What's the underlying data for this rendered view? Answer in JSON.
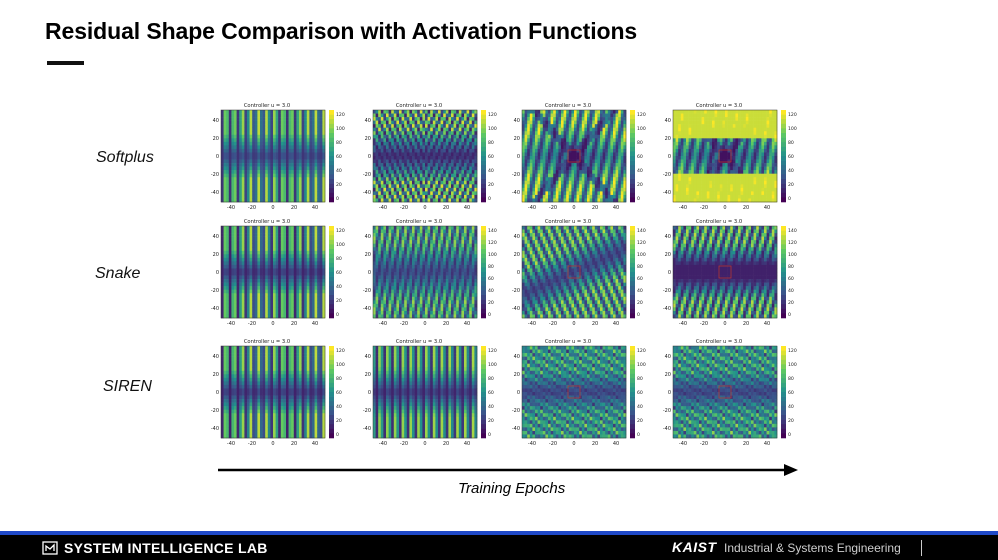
{
  "slide": {
    "title": "Residual Shape Comparison with Activation Functions",
    "rows": [
      "Softplus",
      "Snake",
      "SIREN"
    ],
    "xaxis_label": "Training Epochs"
  },
  "subplot": {
    "title": "Controller u = 3.0",
    "x_ticks": [
      "-40",
      "-20",
      "0",
      "20",
      "40"
    ],
    "y_ticks": [
      "40",
      "20",
      "0",
      "-20",
      "-40"
    ],
    "colormap": "viridis"
  },
  "colorbar_ticks": {
    "standard": [
      "120",
      "100",
      "80",
      "60",
      "40",
      "20",
      "0"
    ],
    "extended": [
      "140",
      "120",
      "100",
      "80",
      "60",
      "40",
      "20",
      "0"
    ]
  },
  "footer": {
    "lab": "SYSTEM INTELLIGENCE LAB",
    "university": "KAIST",
    "department": "Industrial & Systems Engineering"
  },
  "colors": {
    "footer_background": "#000000",
    "footer_accent": "#1f49c8"
  }
}
